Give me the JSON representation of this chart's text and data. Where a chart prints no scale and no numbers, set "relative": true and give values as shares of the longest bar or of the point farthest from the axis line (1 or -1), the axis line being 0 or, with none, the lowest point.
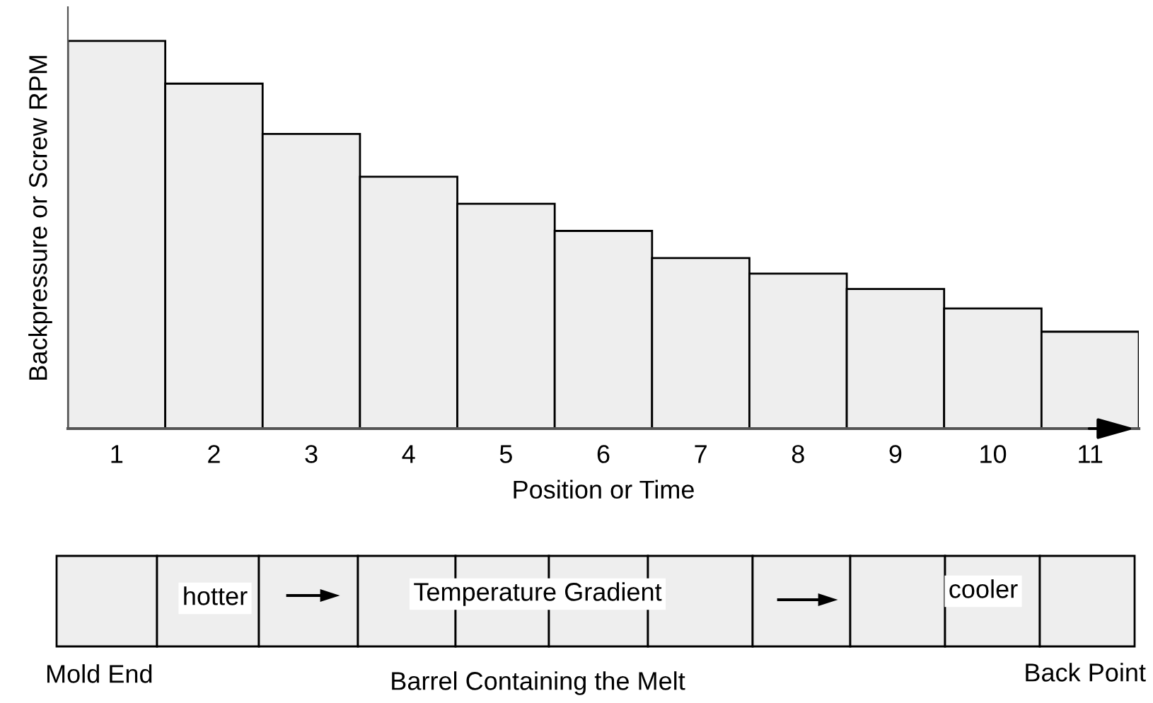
{
  "chart_data": {
    "type": "bar",
    "relative": true,
    "xlabel": "Position or Time",
    "ylabel": "Backpressure or Screw RPM",
    "categories": [
      "1",
      "2",
      "3",
      "4",
      "5",
      "6",
      "7",
      "8",
      "9",
      "10",
      "11"
    ],
    "values": [
      1,
      0.89,
      0.76,
      0.65,
      0.58,
      0.51,
      0.44,
      0.4,
      0.36,
      0.31,
      0.25
    ],
    "color": "#eeeeee",
    "annotations": [
      "hotter",
      "Temperature Gradient",
      "cooler",
      "Mold End",
      "Barrel Containing the Melt",
      "Back Point"
    ]
  }
}
